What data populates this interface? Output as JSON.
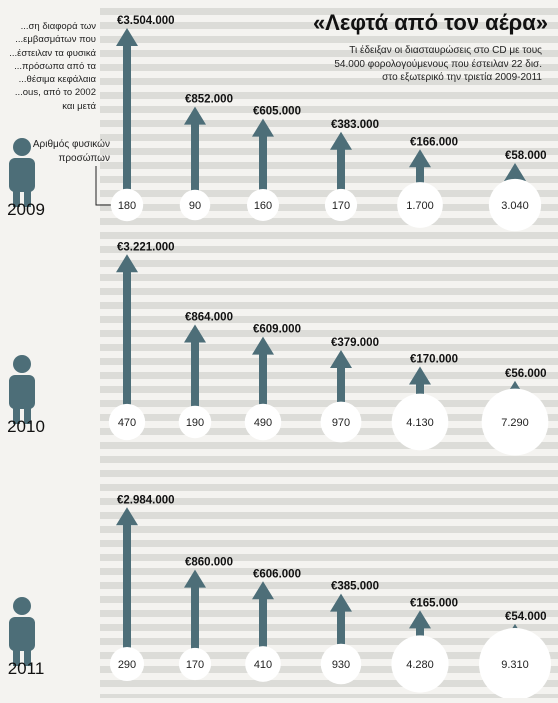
{
  "title": "«Λεφτά από τον αέρα»",
  "subtitle": "Τι έδειξαν οι διασταυρώσεις στο CD με τους 54.000 φορολογούμενους που έστειλαν 22 δισ. στο εξωτερικό την τριετία 2009-2011",
  "left_note": "...ση διαφορά των ...εμβασμάτων που ...έστειλαν τα φυσικά ...πρόσωπα από τα ...θέσιμα κεφάλαια ...ous, από το 2002 και μετά",
  "persons_label": "Αριθμός φυσικών προσώπων",
  "colors": {
    "arrow": "#4d6e78",
    "circle": "#ffffff",
    "stripe": "#dcdcd8",
    "person": "#4d6e78"
  },
  "chart_data": [
    {
      "type": "bar",
      "year": "2009",
      "amounts": [
        3504000,
        852000,
        605000,
        383000,
        166000,
        58000
      ],
      "amount_labels": [
        "€3.504.000",
        "€852.000",
        "€605.000",
        "€383.000",
        "€166.000",
        "€58.000"
      ],
      "persons": [
        180,
        90,
        160,
        170,
        1700,
        3040
      ],
      "person_labels": [
        "180",
        "90",
        "160",
        "170",
        "1.700",
        "3.040"
      ]
    },
    {
      "type": "bar",
      "year": "2010",
      "amounts": [
        3221000,
        864000,
        609000,
        379000,
        170000,
        56000
      ],
      "amount_labels": [
        "€3.221.000",
        "€864.000",
        "€609.000",
        "€379.000",
        "€170.000",
        "€56.000"
      ],
      "persons": [
        470,
        190,
        490,
        970,
        4130,
        7290
      ],
      "person_labels": [
        "470",
        "190",
        "490",
        "970",
        "4.130",
        "7.290"
      ]
    },
    {
      "type": "bar",
      "year": "2011",
      "amounts": [
        2984000,
        860000,
        606000,
        385000,
        165000,
        54000
      ],
      "amount_labels": [
        "€2.984.000",
        "€860.000",
        "€606.000",
        "€385.000",
        "€165.000",
        "€54.000"
      ],
      "persons": [
        290,
        170,
        410,
        930,
        4280,
        9310
      ],
      "person_labels": [
        "290",
        "170",
        "410",
        "930",
        "4.280",
        "9.310"
      ]
    }
  ]
}
